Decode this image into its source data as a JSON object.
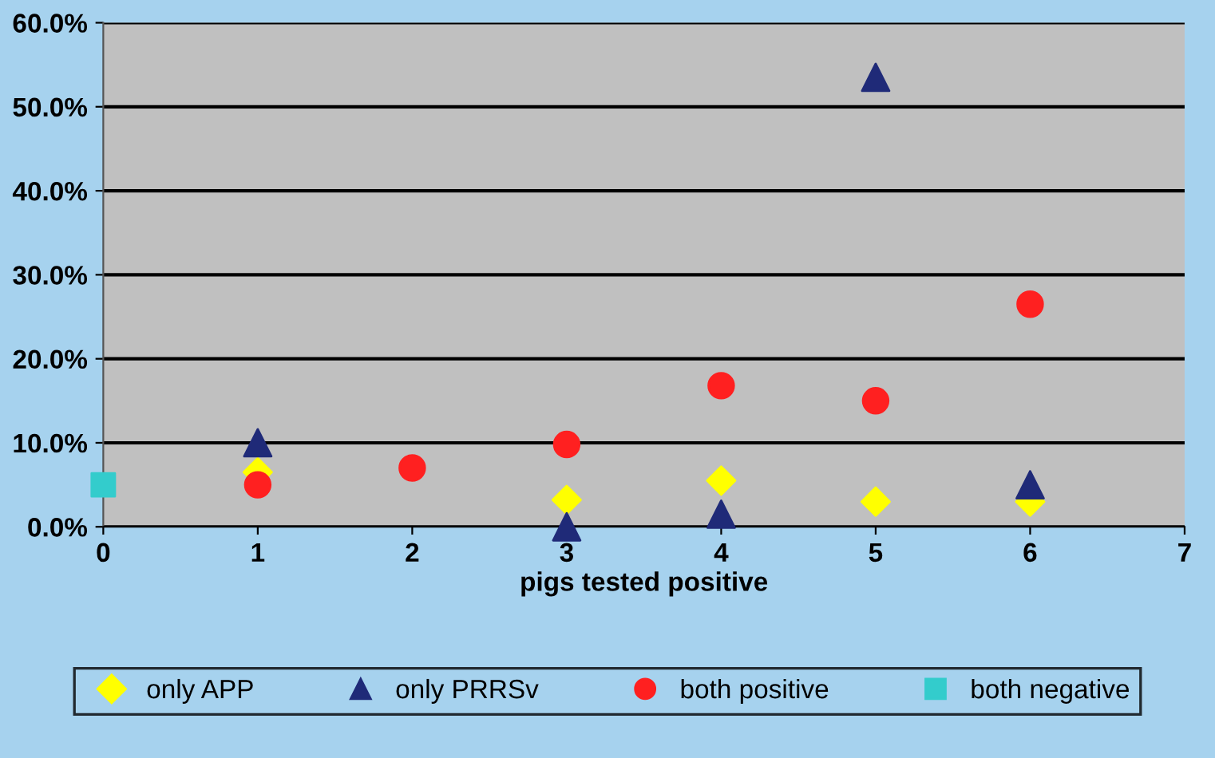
{
  "chart_data": {
    "type": "scatter",
    "xlabel": "pigs tested positive",
    "xlim": [
      0,
      7
    ],
    "xticks": [
      0,
      1,
      2,
      3,
      4,
      5,
      6,
      7
    ],
    "ylim": [
      0,
      60
    ],
    "yticks": [
      {
        "value": 0,
        "label": "0.0%"
      },
      {
        "value": 10,
        "label": "10.0%"
      },
      {
        "value": 20,
        "label": "20.0%"
      },
      {
        "value": 30,
        "label": "30.0%"
      },
      {
        "value": 40,
        "label": "40.0%"
      },
      {
        "value": 50,
        "label": "50.0%"
      },
      {
        "value": 60,
        "label": "60.0%"
      }
    ],
    "grid": "y",
    "legend": "bottom",
    "series": [
      {
        "name": "only APP",
        "color": "#ffff00",
        "marker": "diamond",
        "x": [
          1,
          3,
          4,
          5,
          6
        ],
        "values": [
          6.5,
          3.2,
          5.5,
          3,
          3
        ]
      },
      {
        "name": "only PRRSv",
        "color": "#1f2a78",
        "marker": "triangle",
        "x": [
          1,
          3,
          4,
          5,
          6
        ],
        "values": [
          10,
          0,
          1.5,
          53.5,
          5
        ]
      },
      {
        "name": "both positive",
        "color": "#ff2020",
        "marker": "circle",
        "x": [
          1,
          2,
          3,
          4,
          5,
          6
        ],
        "values": [
          5,
          7,
          9.8,
          16.8,
          15,
          26.5
        ]
      },
      {
        "name": "both negative",
        "color": "#33cccc",
        "marker": "square",
        "x": [
          0
        ],
        "values": [
          5
        ]
      }
    ]
  }
}
